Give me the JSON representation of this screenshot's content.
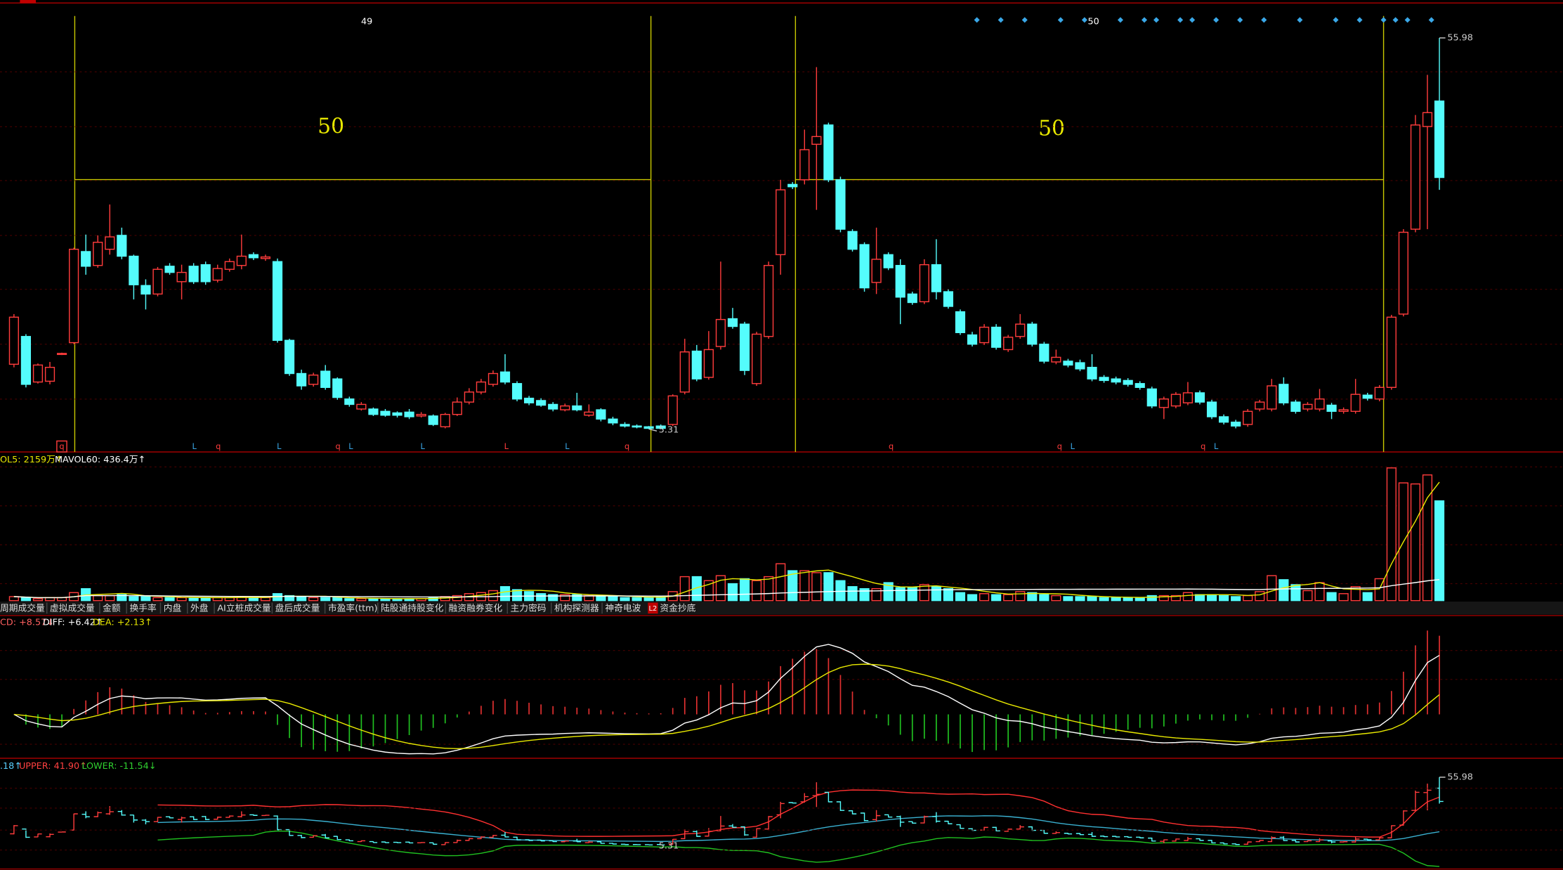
{
  "annotations": {
    "top_counts": [
      "49",
      "50"
    ],
    "span_counts": [
      "50",
      "50"
    ]
  },
  "price_labels": {
    "high": "55.98",
    "low": "5.31"
  },
  "candles": [
    [
      13.7,
      19.8,
      20.2,
      13.3
    ],
    [
      17.3,
      11.1,
      17.6,
      10.7
    ],
    [
      11.4,
      13.6,
      13.8,
      11.2
    ],
    [
      11.5,
      13.3,
      14.0,
      11.1
    ],
    [
      15.0,
      15.1,
      15.2,
      14.9
    ],
    [
      16.5,
      28.6,
      28.8,
      16.3
    ],
    [
      28.3,
      26.4,
      30.5,
      25.3
    ],
    [
      26.5,
      29.5,
      30.4,
      26.2
    ],
    [
      28.6,
      30.2,
      34.4,
      27.9
    ],
    [
      30.4,
      27.7,
      31.4,
      27.3
    ],
    [
      27.7,
      24.0,
      27.9,
      22.1
    ],
    [
      23.9,
      22.8,
      24.7,
      20.8
    ],
    [
      22.8,
      26.0,
      26.3,
      22.5
    ],
    [
      26.4,
      25.6,
      26.8,
      25.3
    ],
    [
      24.4,
      25.6,
      26.6,
      22.1
    ],
    [
      26.4,
      24.4,
      26.8,
      24.1
    ],
    [
      26.6,
      24.4,
      27.0,
      24.0
    ],
    [
      24.6,
      26.1,
      26.6,
      24.3
    ],
    [
      26.0,
      27.0,
      27.4,
      25.7
    ],
    [
      26.5,
      27.7,
      30.5,
      26.0
    ],
    [
      27.9,
      27.5,
      28.2,
      27.2
    ],
    [
      27.4,
      27.6,
      27.9,
      27.1
    ],
    [
      27.0,
      16.8,
      27.4,
      16.5
    ],
    [
      16.8,
      12.5,
      17.0,
      12.2
    ],
    [
      12.5,
      10.9,
      13.0,
      10.4
    ],
    [
      11.1,
      12.3,
      12.6,
      10.8
    ],
    [
      12.8,
      10.7,
      13.6,
      10.4
    ],
    [
      11.8,
      9.4,
      12.0,
      9.1
    ],
    [
      9.2,
      8.5,
      9.5,
      8.2
    ],
    [
      7.9,
      8.5,
      8.8,
      7.7
    ],
    [
      7.9,
      7.2,
      8.1,
      7.0
    ],
    [
      7.6,
      7.1,
      7.9,
      6.9
    ],
    [
      7.4,
      7.1,
      7.6,
      6.8
    ],
    [
      7.5,
      6.9,
      7.9,
      6.6
    ],
    [
      7.0,
      7.2,
      7.5,
      6.8
    ],
    [
      7.0,
      5.9,
      7.2,
      5.7
    ],
    [
      5.6,
      7.2,
      7.4,
      5.4
    ],
    [
      7.2,
      8.8,
      9.4,
      7.0
    ],
    [
      8.8,
      10.1,
      10.6,
      8.5
    ],
    [
      10.1,
      11.4,
      11.8,
      9.8
    ],
    [
      11.1,
      12.5,
      12.9,
      10.8
    ],
    [
      12.7,
      11.4,
      15.0,
      11.1
    ],
    [
      11.2,
      9.2,
      11.5,
      8.9
    ],
    [
      9.3,
      8.7,
      9.6,
      8.4
    ],
    [
      9.0,
      8.4,
      9.3,
      8.2
    ],
    [
      8.5,
      7.9,
      8.8,
      7.6
    ],
    [
      7.8,
      8.3,
      8.6,
      7.6
    ],
    [
      8.3,
      7.8,
      10.0,
      7.6
    ],
    [
      7.1,
      7.5,
      8.5,
      6.9
    ],
    [
      7.8,
      6.6,
      8.0,
      6.3
    ],
    [
      6.6,
      6.1,
      6.9,
      5.8
    ],
    [
      5.9,
      5.7,
      6.2,
      5.5
    ],
    [
      5.7,
      5.6,
      5.9,
      5.4
    ],
    [
      5.6,
      5.4,
      5.7,
      5.31
    ],
    [
      5.7,
      5.4,
      5.9,
      5.35
    ],
    [
      5.9,
      9.6,
      9.8,
      5.7
    ],
    [
      10.1,
      15.3,
      17.0,
      9.8
    ],
    [
      15.4,
      11.8,
      16.2,
      11.5
    ],
    [
      12.0,
      15.6,
      18.0,
      11.7
    ],
    [
      16.0,
      19.5,
      27.0,
      15.6
    ],
    [
      19.6,
      18.6,
      21.0,
      18.3
    ],
    [
      18.9,
      12.9,
      19.2,
      12.3
    ],
    [
      11.2,
      17.6,
      17.9,
      10.9
    ],
    [
      17.3,
      26.5,
      27.0,
      17.0
    ],
    [
      27.9,
      36.3,
      37.6,
      25.3
    ],
    [
      37.0,
      36.7,
      37.3,
      36.4
    ],
    [
      37.6,
      41.5,
      44.1,
      37.0
    ],
    [
      42.2,
      43.2,
      52.2,
      33.7
    ],
    [
      44.7,
      37.6,
      45.0,
      37.3
    ],
    [
      37.6,
      31.2,
      38.0,
      30.8
    ],
    [
      30.9,
      28.6,
      31.2,
      28.3
    ],
    [
      29.2,
      23.6,
      29.5,
      23.1
    ],
    [
      24.3,
      27.3,
      31.4,
      22.8
    ],
    [
      27.9,
      26.2,
      28.2,
      25.9
    ],
    [
      26.5,
      22.4,
      27.3,
      18.9
    ],
    [
      22.8,
      21.7,
      23.1,
      21.4
    ],
    [
      21.8,
      26.6,
      27.3,
      21.5
    ],
    [
      26.6,
      23.1,
      29.9,
      22.1
    ],
    [
      23.1,
      21.2,
      23.4,
      20.9
    ],
    [
      20.5,
      17.8,
      20.8,
      17.5
    ],
    [
      17.5,
      16.3,
      17.9,
      16.0
    ],
    [
      16.5,
      18.5,
      18.9,
      16.2
    ],
    [
      18.5,
      15.9,
      18.9,
      15.6
    ],
    [
      15.6,
      17.2,
      17.5,
      15.3
    ],
    [
      17.3,
      18.9,
      20.2,
      17.0
    ],
    [
      18.9,
      16.3,
      19.2,
      16.0
    ],
    [
      16.3,
      14.1,
      16.6,
      13.8
    ],
    [
      14.0,
      14.6,
      15.6,
      13.7
    ],
    [
      14.1,
      13.6,
      14.4,
      13.3
    ],
    [
      13.9,
      13.1,
      14.3,
      12.8
    ],
    [
      13.3,
      11.8,
      15.0,
      11.5
    ],
    [
      12.0,
      11.6,
      12.3,
      11.3
    ],
    [
      11.8,
      11.4,
      12.1,
      11.1
    ],
    [
      11.6,
      11.1,
      11.9,
      10.8
    ],
    [
      11.2,
      10.7,
      11.5,
      10.4
    ],
    [
      10.5,
      8.3,
      10.8,
      8.0
    ],
    [
      8.1,
      9.2,
      9.5,
      6.6
    ],
    [
      8.3,
      9.8,
      10.1,
      8.0
    ],
    [
      8.7,
      10.0,
      11.4,
      8.4
    ],
    [
      10.0,
      8.8,
      10.3,
      8.5
    ],
    [
      8.8,
      6.9,
      9.1,
      6.6
    ],
    [
      6.9,
      6.2,
      7.2,
      5.9
    ],
    [
      6.2,
      5.7,
      6.5,
      5.4
    ],
    [
      5.9,
      7.6,
      7.9,
      5.6
    ],
    [
      7.9,
      8.8,
      9.1,
      7.6
    ],
    [
      7.9,
      10.9,
      11.8,
      7.6
    ],
    [
      11.1,
      8.7,
      12.0,
      8.4
    ],
    [
      8.8,
      7.6,
      9.1,
      7.3
    ],
    [
      7.9,
      8.5,
      8.8,
      7.6
    ],
    [
      7.9,
      9.2,
      10.5,
      7.6
    ],
    [
      8.4,
      7.6,
      8.7,
      6.6
    ],
    [
      7.6,
      7.8,
      8.1,
      7.3
    ],
    [
      7.6,
      9.8,
      11.8,
      7.3
    ],
    [
      9.7,
      9.3,
      10.0,
      9.0
    ],
    [
      9.2,
      10.7,
      11.0,
      8.9
    ],
    [
      10.7,
      19.8,
      20.1,
      10.4
    ],
    [
      20.2,
      30.8,
      31.2,
      19.9
    ],
    [
      31.2,
      44.7,
      46.0,
      30.8
    ],
    [
      44.5,
      46.3,
      51.2,
      31.2
    ],
    [
      47.8,
      37.9,
      55.98,
      36.3
    ]
  ],
  "signals": [
    "q",
    "L",
    "q",
    "L",
    "q",
    "L",
    "L",
    "L",
    "L",
    "q",
    "q",
    "q",
    "L",
    "q",
    "L"
  ],
  "volume": {
    "legend": [
      "OL5: 2159万↑",
      "MAVOL60: 436.4万↑"
    ],
    "values": [
      73,
      55,
      36,
      55,
      55,
      146,
      218,
      91,
      91,
      109,
      73,
      73,
      55,
      55,
      55,
      55,
      55,
      55,
      55,
      73,
      55,
      55,
      127,
      91,
      73,
      55,
      55,
      55,
      36,
      36,
      36,
      36,
      36,
      36,
      36,
      55,
      73,
      91,
      127,
      146,
      182,
      255,
      200,
      164,
      127,
      109,
      109,
      109,
      91,
      91,
      73,
      55,
      55,
      55,
      73,
      164,
      437,
      437,
      364,
      455,
      309,
      400,
      364,
      437,
      673,
      546,
      546,
      510,
      510,
      364,
      255,
      218,
      218,
      328,
      237,
      237,
      291,
      255,
      218,
      146,
      109,
      127,
      109,
      109,
      164,
      146,
      109,
      91,
      73,
      73,
      73,
      55,
      55,
      55,
      55,
      91,
      91,
      91,
      146,
      109,
      109,
      91,
      73,
      91,
      164,
      455,
      382,
      291,
      182,
      328,
      146,
      127,
      255,
      146,
      400,
      2421,
      2148,
      2129,
      2293,
      1820
    ]
  },
  "tabs": [
    "周期成交量",
    "虚拟成交量",
    "金额",
    "换手率",
    "内盘",
    "外盘",
    "AI立桩成交量",
    "盘后成交量",
    "市盈率(ttm)",
    "陆股通持股变化",
    "融资融券变化",
    "主力密码",
    "机构探测器",
    "神奇电波",
    "资金抄底"
  ],
  "tab_badge": "L2",
  "macd": {
    "legend": [
      "CD: +8.57↓",
      "DIFF: +6.42↑",
      "DEA: +2.13↑"
    ]
  },
  "boll": {
    "legend": [
      ".18↑",
      "UPPER: 41.90↑",
      "LOWER: -11.54↓"
    ]
  }
}
